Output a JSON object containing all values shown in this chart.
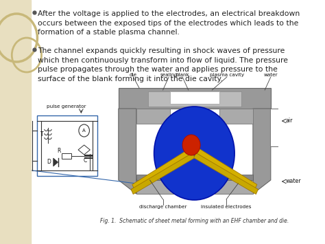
{
  "background_color": "#ffffff",
  "left_panel_color": "#e8dfc0",
  "text_color": "#222222",
  "bullet_color": "#555555",
  "font_size_body": 7.8,
  "font_size_caption": 5.5,
  "font_size_diagram": 5.2,
  "bullet1_lines": [
    "After the voltage is applied to the electrodes, an electrical breakdown",
    "occurs between the exposed tips of the electrodes which leads to the",
    "formation of a stable plasma channel."
  ],
  "bullet2_lines": [
    "The channel expands quickly resulting in shock waves of pressure",
    "which then continuously transform into flow of liquid. The pressure",
    "pulse propagates through the water and applies pressure to the",
    "surface of the blank forming it into the die cavity."
  ],
  "fig_caption": "Fig. 1.  Schematic of sheet metal forming with an EHF chamber and die.",
  "pulse_label": "pulse generator",
  "diagram_labels_top": [
    "die",
    "sealing",
    "blank",
    "plasma cavity",
    "water"
  ],
  "diagram_labels_right": [
    "air",
    "water"
  ],
  "diagram_labels_bottom_left": "discharge chamber",
  "diagram_labels_bottom_right": "insulated electrodes"
}
